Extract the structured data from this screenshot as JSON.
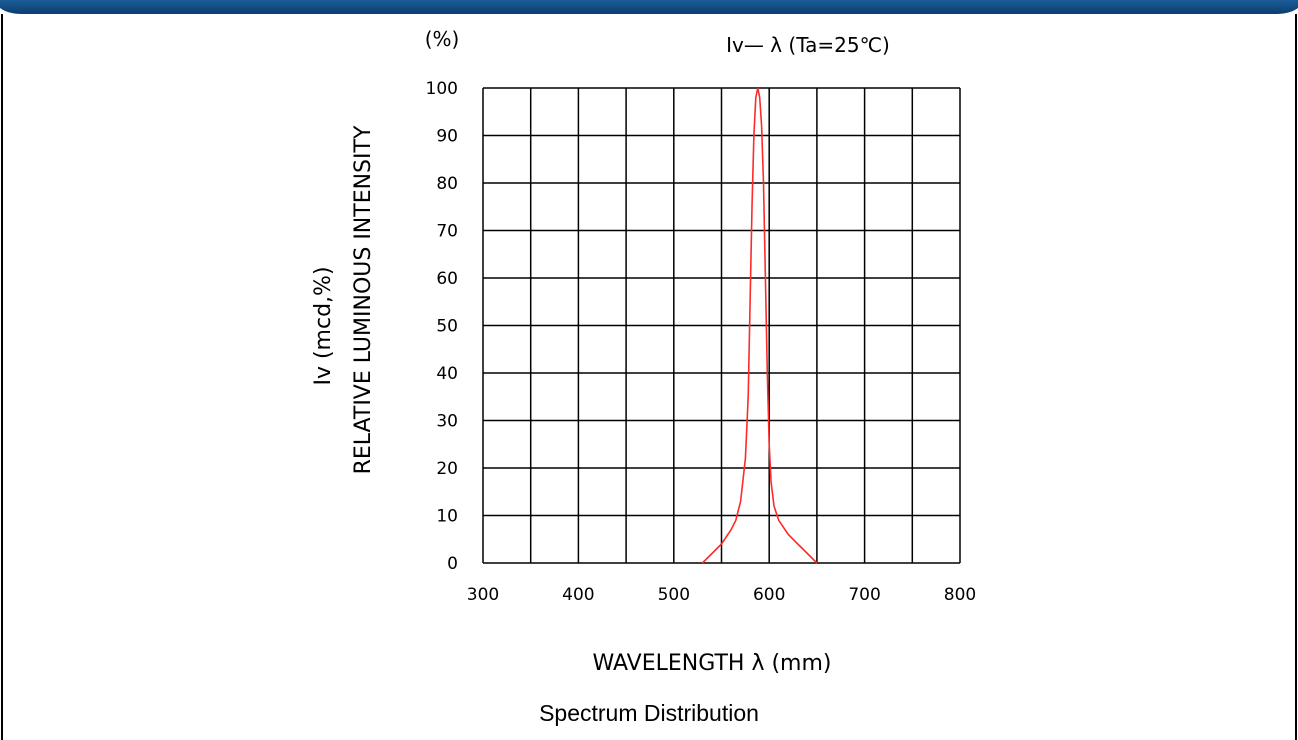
{
  "chart_data": {
    "type": "line",
    "title": "Iv— λ (Ta=25℃)",
    "unit_label": "(%)",
    "ylabel_line1": "Iv (mcd,%)",
    "ylabel_line2": "RELATIVE LUMINOUS INTENSITY",
    "xlabel": "WAVELENGTH λ (mm)",
    "xlim": [
      300,
      800
    ],
    "ylim": [
      0,
      100
    ],
    "x_ticks": [
      "300",
      "400",
      "500",
      "600",
      "700",
      "800"
    ],
    "y_ticks": [
      "0",
      "10",
      "20",
      "30",
      "40",
      "50",
      "60",
      "70",
      "80",
      "90",
      "100"
    ],
    "grid": true,
    "series": [
      {
        "color": "#ff2a2a",
        "x": [
          530,
          540,
          550,
          560,
          565,
          570,
          575,
          578,
          580,
          582,
          584,
          586,
          588,
          590,
          592,
          594,
          596,
          598,
          600,
          602,
          605,
          610,
          620,
          630,
          640,
          650
        ],
        "y": [
          0,
          2,
          4,
          7,
          9,
          13,
          22,
          35,
          55,
          75,
          90,
          98,
          100,
          98,
          92,
          80,
          60,
          40,
          25,
          17,
          12,
          9,
          6,
          4,
          2,
          0
        ]
      }
    ],
    "caption": "Spectrum Distribution"
  }
}
